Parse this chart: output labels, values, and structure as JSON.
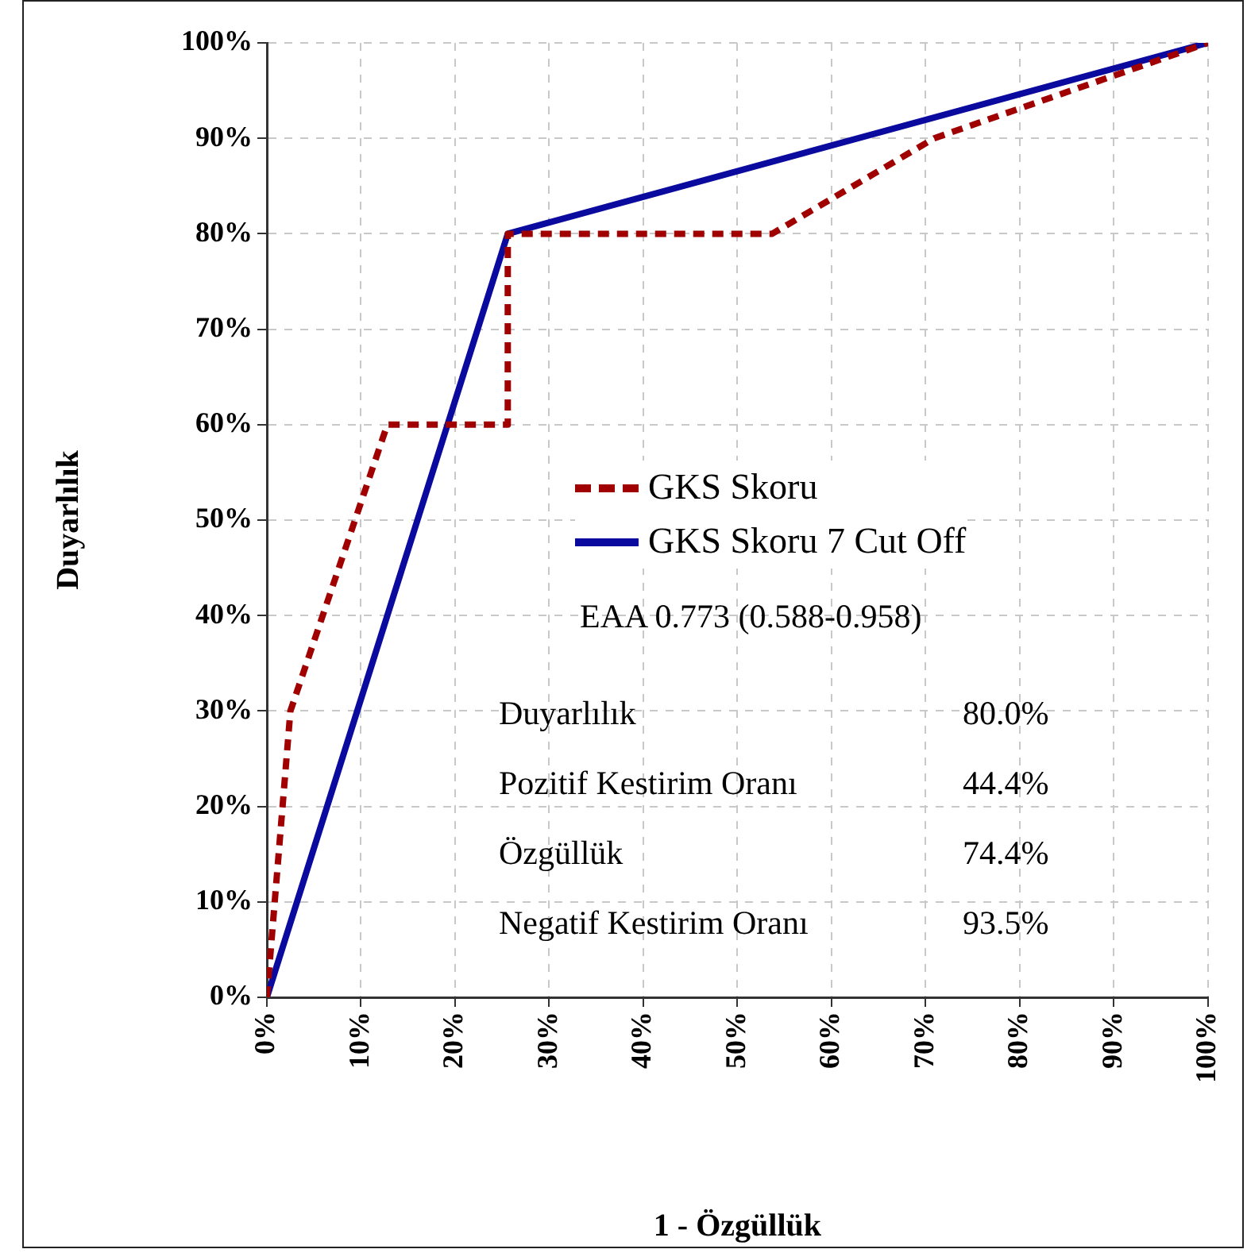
{
  "chart_data": {
    "type": "line",
    "xlabel": "1 - Özgüllük",
    "ylabel": "Duyarlılık",
    "series": [
      {
        "name": "GKS Skoru",
        "color": "#a00000",
        "line_style": "dotted",
        "x": [
          0,
          2.5,
          12.8,
          25.6,
          25.6,
          53.7,
          70.9,
          100
        ],
        "values": [
          0,
          30,
          60,
          60,
          80,
          80,
          90,
          100
        ]
      },
      {
        "name": "GKS Skoru 7 Cut Off",
        "color": "#0a0a9e",
        "line_style": "solid",
        "x": [
          0,
          25.6,
          100
        ],
        "values": [
          0,
          80,
          100
        ]
      }
    ],
    "xlim": [
      0,
      100
    ],
    "ylim": [
      0,
      100
    ],
    "xticks": [
      {
        "value": 0,
        "label": "0%"
      },
      {
        "value": 10,
        "label": "10%"
      },
      {
        "value": 20,
        "label": "20%"
      },
      {
        "value": 30,
        "label": "30%"
      },
      {
        "value": 40,
        "label": "40%"
      },
      {
        "value": 50,
        "label": "50%"
      },
      {
        "value": 60,
        "label": "60%"
      },
      {
        "value": 70,
        "label": "70%"
      },
      {
        "value": 80,
        "label": "80%"
      },
      {
        "value": 90,
        "label": "90%"
      },
      {
        "value": 100,
        "label": "100%"
      }
    ],
    "yticks": [
      {
        "value": 0,
        "label": "0%"
      },
      {
        "value": 10,
        "label": "10%"
      },
      {
        "value": 20,
        "label": "20%"
      },
      {
        "value": 30,
        "label": "30%"
      },
      {
        "value": 40,
        "label": "40%"
      },
      {
        "value": 50,
        "label": "50%"
      },
      {
        "value": 60,
        "label": "60%"
      },
      {
        "value": 70,
        "label": "70%"
      },
      {
        "value": 80,
        "label": "80%"
      },
      {
        "value": 90,
        "label": "90%"
      },
      {
        "value": 100,
        "label": "100%"
      }
    ],
    "grid": true,
    "legend": "center",
    "marker": "none",
    "annotations": [
      "EAA 0.773 (0.588-0.958)",
      "Duyarlılık",
      "80.0%",
      "Pozitif Kestirim Oranı",
      "44.4%",
      "Özgüllük",
      "74.4%",
      "Negatif Kestirim Oranı",
      "93.5%"
    ]
  }
}
